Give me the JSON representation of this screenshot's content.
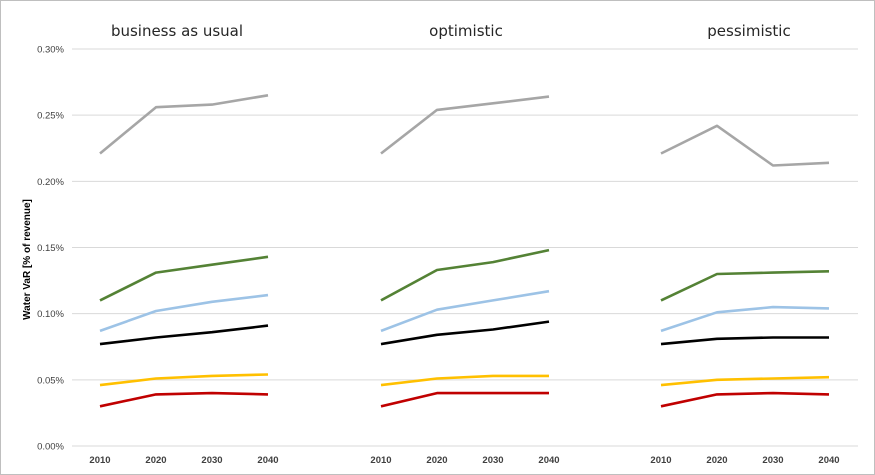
{
  "chart_data": {
    "type": "line",
    "ylabel": "Water VaR [% of revenue]",
    "ylim": [
      0,
      0.3
    ],
    "yticks": [
      0,
      0.05,
      0.1,
      0.15,
      0.2,
      0.25,
      0.3
    ],
    "ytick_labels": [
      "0.00%",
      "0.05%",
      "0.10%",
      "0.15%",
      "0.20%",
      "0.25%",
      "0.30%"
    ],
    "grid": true,
    "x": [
      "2010",
      "2020",
      "2030",
      "2040"
    ],
    "panels": [
      {
        "title": "business as usual",
        "series": [
          {
            "color": "#a6a6a6",
            "values": [
              0.221,
              0.256,
              0.258,
              0.265
            ]
          },
          {
            "color": "#548235",
            "values": [
              0.11,
              0.131,
              0.137,
              0.143
            ]
          },
          {
            "color": "#9dc3e6",
            "values": [
              0.087,
              0.102,
              0.109,
              0.114
            ]
          },
          {
            "color": "#000000",
            "values": [
              0.077,
              0.082,
              0.086,
              0.091
            ]
          },
          {
            "color": "#ffc000",
            "values": [
              0.046,
              0.051,
              0.053,
              0.054
            ]
          },
          {
            "color": "#c00000",
            "values": [
              0.03,
              0.039,
              0.04,
              0.039
            ]
          }
        ]
      },
      {
        "title": "optimistic",
        "series": [
          {
            "color": "#a6a6a6",
            "values": [
              0.221,
              0.254,
              0.259,
              0.264
            ]
          },
          {
            "color": "#548235",
            "values": [
              0.11,
              0.133,
              0.139,
              0.148
            ]
          },
          {
            "color": "#9dc3e6",
            "values": [
              0.087,
              0.103,
              0.11,
              0.117
            ]
          },
          {
            "color": "#000000",
            "values": [
              0.077,
              0.084,
              0.088,
              0.094
            ]
          },
          {
            "color": "#ffc000",
            "values": [
              0.046,
              0.051,
              0.053,
              0.053
            ]
          },
          {
            "color": "#c00000",
            "values": [
              0.03,
              0.04,
              0.04,
              0.04
            ]
          }
        ]
      },
      {
        "title": "pessimistic",
        "series": [
          {
            "color": "#a6a6a6",
            "values": [
              0.221,
              0.242,
              0.212,
              0.214
            ]
          },
          {
            "color": "#548235",
            "values": [
              0.11,
              0.13,
              0.131,
              0.132
            ]
          },
          {
            "color": "#9dc3e6",
            "values": [
              0.087,
              0.101,
              0.105,
              0.104
            ]
          },
          {
            "color": "#000000",
            "values": [
              0.077,
              0.081,
              0.082,
              0.082
            ]
          },
          {
            "color": "#ffc000",
            "values": [
              0.046,
              0.05,
              0.051,
              0.052
            ]
          },
          {
            "color": "#c00000",
            "values": [
              0.03,
              0.039,
              0.04,
              0.039
            ]
          }
        ]
      }
    ]
  }
}
